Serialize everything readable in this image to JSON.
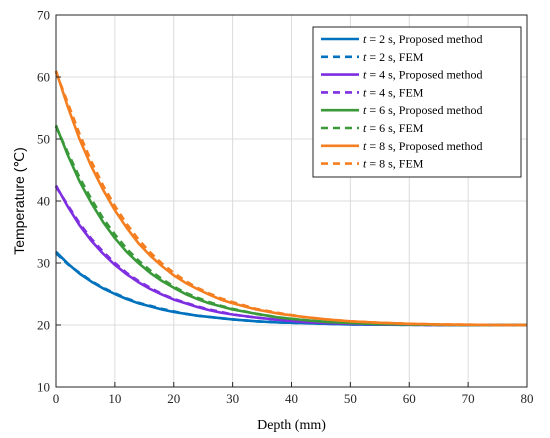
{
  "chart_data": {
    "type": "line",
    "xlabel": "Depth (mm)",
    "ylabel": "Temperature (℃)",
    "xlim": [
      0,
      80
    ],
    "ylim": [
      10,
      70
    ],
    "xticks": [
      0,
      10,
      20,
      30,
      40,
      50,
      60,
      70,
      80
    ],
    "yticks": [
      10,
      20,
      30,
      40,
      50,
      60,
      70
    ],
    "grid": true,
    "legend_position": "top-right",
    "x": [
      0,
      2,
      4,
      6,
      8,
      10,
      12,
      14,
      16,
      18,
      20,
      22,
      24,
      26,
      28,
      30,
      34,
      38,
      42,
      46,
      50,
      55,
      60,
      65,
      70,
      75,
      80
    ],
    "series": [
      {
        "name": "t = 2 s, Proposed method",
        "t_label": "t",
        "rest_label": " = 2 s, Proposed method",
        "color": "#0072BD",
        "dash": false,
        "values": [
          31.8,
          29.9,
          28.3,
          27.0,
          25.9,
          25.0,
          24.2,
          23.5,
          23.0,
          22.5,
          22.1,
          21.8,
          21.5,
          21.3,
          21.1,
          20.9,
          20.6,
          20.4,
          20.3,
          20.2,
          20.1,
          20.05,
          20.03,
          20.0,
          20.0,
          20.0,
          20.0
        ]
      },
      {
        "name": "t = 2 s, FEM",
        "t_label": "t",
        "rest_label": " = 2 s, FEM",
        "color": "#0072BD",
        "dash": true,
        "values": [
          31.6,
          29.8,
          28.4,
          27.1,
          26.0,
          25.1,
          24.3,
          23.6,
          23.1,
          22.6,
          22.2,
          21.8,
          21.5,
          21.3,
          21.1,
          20.9,
          20.6,
          20.4,
          20.3,
          20.2,
          20.1,
          20.05,
          20.03,
          20.0,
          20.0,
          20.0,
          20.0
        ]
      },
      {
        "name": "t = 4 s, Proposed method",
        "t_label": "t",
        "rest_label": " = 4 s, Proposed method",
        "color": "#7E2FE0",
        "dash": false,
        "values": [
          42.5,
          39.1,
          36.1,
          33.6,
          31.5,
          29.7,
          28.2,
          26.9,
          25.8,
          24.9,
          24.1,
          23.5,
          22.9,
          22.4,
          22.0,
          21.7,
          21.2,
          20.8,
          20.5,
          20.3,
          20.2,
          20.1,
          20.05,
          20.0,
          20.0,
          20.0,
          20.0
        ]
      },
      {
        "name": "t = 4 s, FEM",
        "t_label": "t",
        "rest_label": " = 4 s, FEM",
        "color": "#7E2FE0",
        "dash": true,
        "values": [
          42.3,
          39.3,
          36.4,
          33.9,
          31.8,
          30.0,
          28.4,
          27.1,
          26.0,
          25.0,
          24.2,
          23.6,
          23.0,
          22.5,
          22.1,
          21.7,
          21.2,
          20.8,
          20.5,
          20.3,
          20.2,
          20.1,
          20.05,
          20.0,
          20.0,
          20.0,
          20.0
        ]
      },
      {
        "name": "t = 6 s, Proposed method",
        "t_label": "t",
        "rest_label": " = 6 s, Proposed method",
        "color": "#3A9A3A",
        "dash": false,
        "values": [
          52.2,
          47.4,
          43.2,
          39.7,
          36.6,
          34.0,
          31.8,
          30.0,
          28.4,
          27.1,
          26.0,
          25.0,
          24.2,
          23.5,
          23.0,
          22.5,
          21.8,
          21.2,
          20.8,
          20.5,
          20.3,
          20.15,
          20.08,
          20.03,
          20.0,
          20.0,
          20.0
        ]
      },
      {
        "name": "t = 6 s, FEM",
        "t_label": "t",
        "rest_label": " = 6 s, FEM",
        "color": "#3A9A3A",
        "dash": true,
        "values": [
          52.0,
          47.8,
          43.8,
          40.3,
          37.2,
          34.6,
          32.3,
          30.4,
          28.8,
          27.4,
          26.2,
          25.2,
          24.4,
          23.7,
          23.1,
          22.6,
          21.8,
          21.2,
          20.8,
          20.5,
          20.3,
          20.15,
          20.08,
          20.03,
          20.0,
          20.0,
          20.0
        ]
      },
      {
        "name": "t = 8 s, Proposed method",
        "t_label": "t",
        "rest_label": " = 8 s, Proposed method",
        "color": "#F57F20",
        "dash": false,
        "values": [
          61.0,
          55.2,
          50.0,
          45.6,
          41.8,
          38.5,
          35.7,
          33.2,
          31.2,
          29.5,
          28.0,
          26.8,
          25.8,
          24.9,
          24.1,
          23.5,
          22.5,
          21.8,
          21.3,
          20.9,
          20.6,
          20.35,
          20.2,
          20.1,
          20.05,
          20.0,
          20.0
        ]
      },
      {
        "name": "t = 8 s, FEM",
        "t_label": "t",
        "rest_label": " = 8 s, FEM",
        "color": "#F57F20",
        "dash": true,
        "values": [
          60.8,
          55.8,
          50.8,
          46.4,
          42.5,
          39.2,
          36.3,
          33.8,
          31.7,
          29.9,
          28.4,
          27.1,
          26.0,
          25.1,
          24.3,
          23.7,
          22.6,
          21.9,
          21.3,
          20.9,
          20.6,
          20.35,
          20.2,
          20.1,
          20.05,
          20.0,
          20.0
        ]
      }
    ]
  }
}
